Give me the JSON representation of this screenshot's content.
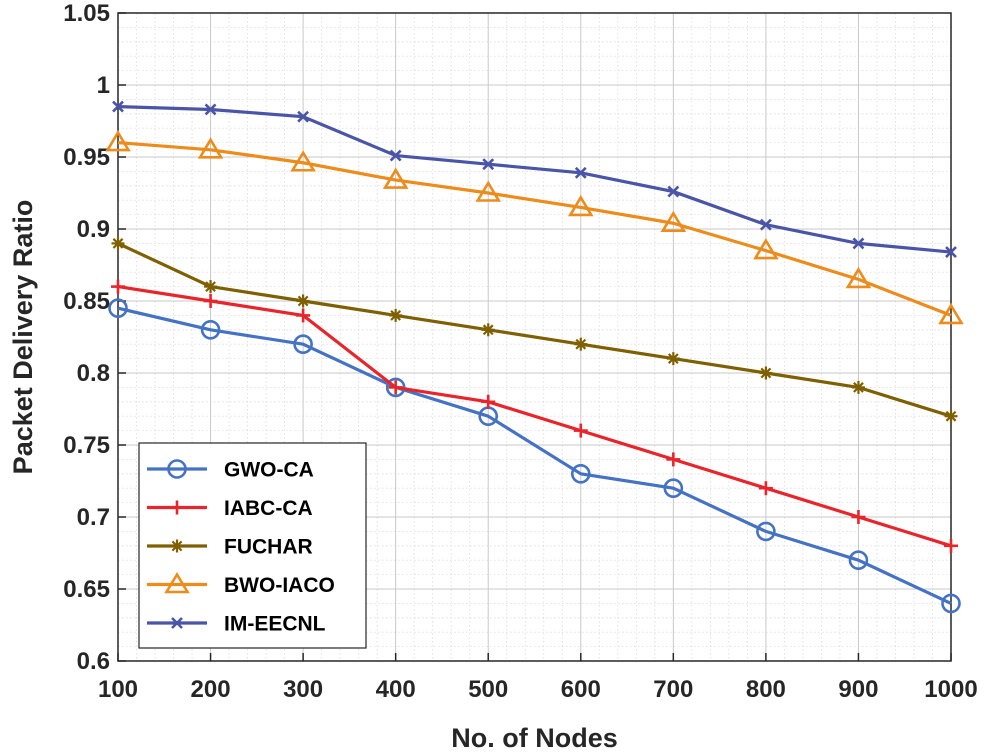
{
  "chart_data": {
    "type": "line",
    "title": "",
    "xlabel": "No. of Nodes",
    "ylabel": "Packet Delivery Ratio",
    "x": [
      100,
      200,
      300,
      400,
      500,
      600,
      700,
      800,
      900,
      1000
    ],
    "xlim": [
      100,
      1000
    ],
    "ylim": [
      0.6,
      1.05
    ],
    "xticks": [
      "100",
      "200",
      "300",
      "400",
      "500",
      "600",
      "700",
      "800",
      "900",
      "1000"
    ],
    "yticks": [
      "0.6",
      "0.65",
      "0.7",
      "0.75",
      "0.8",
      "0.85",
      "0.9",
      "0.95",
      "1",
      "1.05"
    ],
    "grid": true,
    "minor_grid": true,
    "legend_position": "bottom-left",
    "series": [
      {
        "name": "GWO-CA",
        "color": "#4472c4",
        "marker": "circle",
        "values": [
          0.845,
          0.83,
          0.82,
          0.79,
          0.77,
          0.73,
          0.72,
          0.69,
          0.67,
          0.64
        ]
      },
      {
        "name": "IABC-CA",
        "color": "#e8252b",
        "marker": "plus",
        "values": [
          0.86,
          0.85,
          0.84,
          0.79,
          0.78,
          0.76,
          0.74,
          0.72,
          0.7,
          0.68
        ]
      },
      {
        "name": "FUCHAR",
        "color": "#7f6000",
        "marker": "asterisk",
        "values": [
          0.89,
          0.86,
          0.85,
          0.84,
          0.83,
          0.82,
          0.81,
          0.8,
          0.79,
          0.77
        ]
      },
      {
        "name": "BWO-IACO",
        "color": "#ed8b1b",
        "marker": "triangle",
        "values": [
          0.96,
          0.955,
          0.946,
          0.934,
          0.925,
          0.915,
          0.904,
          0.885,
          0.865,
          0.84
        ]
      },
      {
        "name": "IM-EECNL",
        "color": "#4a55a8",
        "marker": "cross",
        "values": [
          0.985,
          0.983,
          0.978,
          0.951,
          0.945,
          0.939,
          0.926,
          0.903,
          0.89,
          0.884
        ]
      }
    ]
  }
}
